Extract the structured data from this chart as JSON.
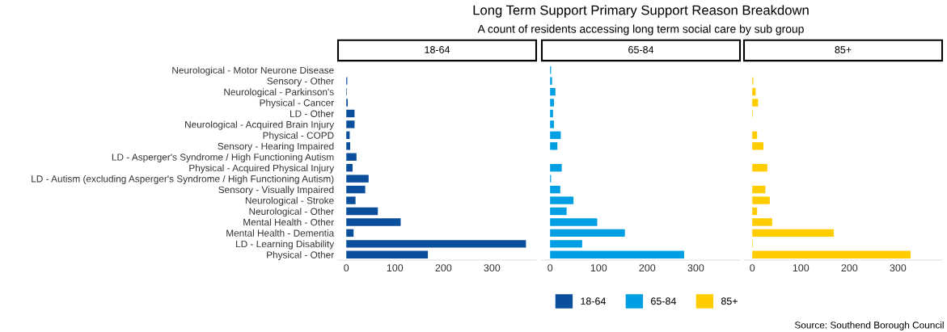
{
  "chart_data": [
    {
      "type": "bar",
      "orientation": "horizontal",
      "xlim": [
        -17,
        391
      ],
      "categories": [
        "Neurological - Motor Neurone Disease",
        "Sensory - Other",
        "Neurological - Parkinson's",
        "Physical - Cancer",
        "LD - Other",
        "Neurological - Acquired Brain Injury",
        "Physical - COPD",
        "Sensory - Hearing Impaired",
        "LD - Asperger's Syndrome / High Functioning Autism",
        "Physical - Acquired Physical Injury",
        "LD - Autism (excluding Asperger's Syndrome / High Functioning Autism)",
        "Sensory - Visually Impaired",
        "Neurological - Stroke",
        "Neurological - Other",
        "Mental Health - Other",
        "Mental Health - Dementia",
        "LD - Learning Disability",
        "Physical - Other"
      ],
      "series": [
        {
          "name": "18-64",
          "color": "#0b4f9c",
          "values": [
            0,
            2,
            1,
            3,
            17,
            17,
            7,
            8,
            21,
            13,
            46,
            39,
            19,
            65,
            112,
            15,
            370,
            168
          ]
        }
      ],
      "xticks": [
        0,
        100,
        200,
        300
      ],
      "grid": false,
      "legend": "bottom"
    },
    {
      "type": "bar",
      "orientation": "horizontal",
      "categories": [
        null,
        null,
        null,
        null,
        null,
        null,
        null,
        null,
        null,
        null,
        null,
        null,
        null,
        null,
        null,
        null,
        null,
        null
      ],
      "series": [
        {
          "name": "65-84",
          "color": "#009fe3",
          "values": [
            2,
            4,
            11,
            8,
            6,
            8,
            22,
            15,
            0,
            24,
            2,
            21,
            48,
            34,
            97,
            154,
            66,
            276
          ]
        }
      ],
      "title": "Long Term Support Primary Support Reason Breakdown",
      "subtitle": "A count of residents accessing long term social care by sub group",
      "xlim": [
        -17,
        391
      ],
      "xticks": [
        0,
        100,
        200,
        300
      ],
      "grid": false,
      "legend": "bottom",
      "tick_labels": "x"
    },
    {
      "type": "bar",
      "orientation": "horizontal",
      "categories": [
        null,
        null,
        null,
        null,
        null,
        null,
        null,
        null,
        null,
        null,
        null,
        null,
        null,
        null,
        null,
        null,
        null,
        null
      ],
      "series": [
        {
          "name": "85+",
          "color": "#ffcc00",
          "values": [
            0,
            2,
            7,
            12,
            1,
            0,
            10,
            23,
            0,
            31,
            0,
            27,
            36,
            10,
            41,
            168,
            1,
            326
          ]
        }
      ],
      "xlim": [
        -17,
        391
      ],
      "xticks": [
        0,
        100,
        200,
        300
      ],
      "grid": false,
      "legend": "bottom",
      "tick_labels": "x",
      "annotations": [
        "Source: Southend Borough Council"
      ]
    }
  ]
}
